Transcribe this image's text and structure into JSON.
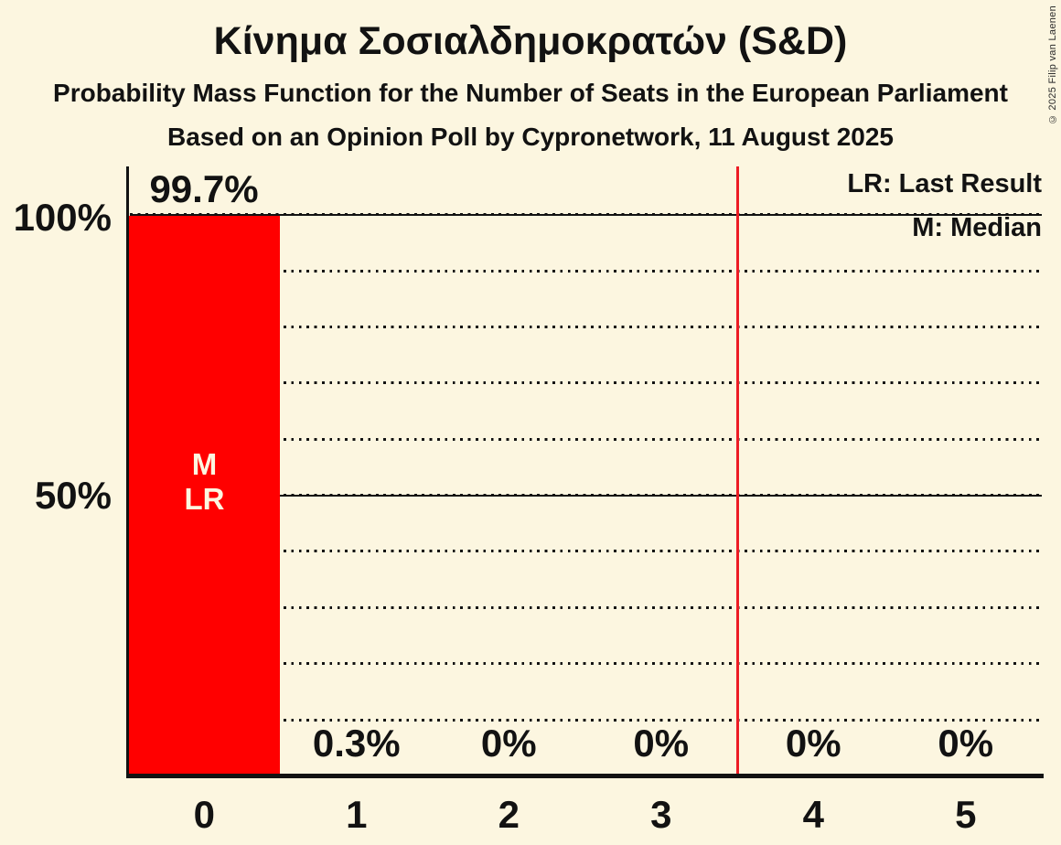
{
  "header": {
    "title": "Κίνημα Σοσιαλδημοκρατών (S&D)",
    "subtitle": "Probability Mass Function for the Number of Seats in the European Parliament",
    "poll_line": "Based on an Opinion Poll by Cypronetwork, 11 August 2025"
  },
  "copyright": "© 2025 Filip van Laenen",
  "legend": {
    "last_result": "LR: Last Result",
    "median": "M: Median"
  },
  "y_axis_labels": {
    "p100": "100%",
    "p50": "50%"
  },
  "bar_overlay": {
    "median": "M",
    "last_result": "LR"
  },
  "colors": {
    "background": "#fcf6e0",
    "bar": "#ff0000",
    "majority_line": "#ed1c24",
    "text": "#121212",
    "bar_text": "#fcf6e0"
  },
  "chart_data": {
    "type": "bar",
    "title": "Κίνημα Σοσιαλδημοκρατών (S&D)",
    "subtitle": "Probability Mass Function for the Number of Seats in the European Parliament",
    "source_line": "Based on an Opinion Poll by Cypronetwork, 11 August 2025",
    "categories": [
      "0",
      "1",
      "2",
      "3",
      "4",
      "5"
    ],
    "values": [
      99.7,
      0.3,
      0,
      0,
      0,
      0
    ],
    "value_labels": [
      "99.7%",
      "0.3%",
      "0%",
      "0%",
      "0%",
      "0%"
    ],
    "ylim": [
      0,
      100
    ],
    "y_tick_labels": [
      "100%",
      "50%"
    ],
    "grid": "dotted horizontal lines every 10%, solid lines at 50% and 100%",
    "legend_position": "top-right",
    "annotations": {
      "median_bar": "0",
      "last_result_bar": "0",
      "bar_letters": [
        "M",
        "LR"
      ],
      "majority_line_x": 3.5
    }
  }
}
